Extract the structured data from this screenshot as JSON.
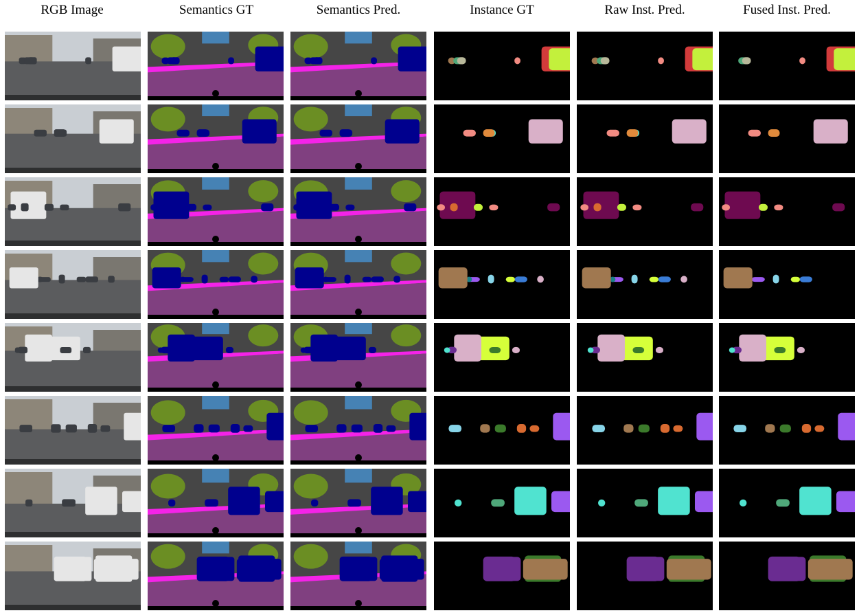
{
  "header": {
    "columns": [
      "RGB Image",
      "Semantics GT",
      "Semantics Pred.",
      "Instance GT",
      "Raw Inst. Pred.",
      "Fused Inst. Pred."
    ]
  }
}
